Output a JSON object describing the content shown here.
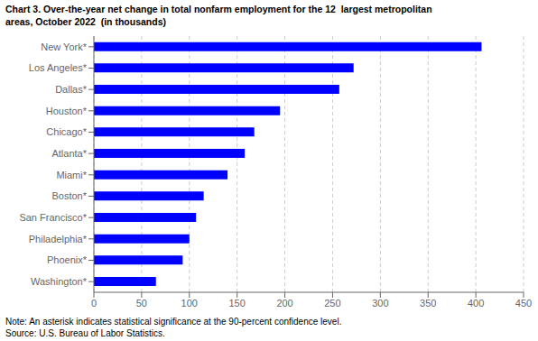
{
  "chart_data": {
    "type": "bar",
    "orientation": "horizontal",
    "title": "Chart 3. Over-the-year net change in total nonfarm employment for the 12  largest metropolitan\nareas, October 2022  (in thousands)",
    "annotations": [
      "Note: An asterisk indicates statistical significance at the 90-percent confidence level.",
      "Source: U.S. Bureau of Labor Statistics."
    ],
    "categories": [
      "Washington*",
      "Phoenix*",
      "Philadelphia*",
      "San Francisco*",
      "Boston*",
      "Miami*",
      "Atlanta*",
      "Chicago*",
      "Houston*",
      "Dallas*",
      "Los Angeles*",
      "New York*"
    ],
    "values": [
      65,
      93,
      100,
      107,
      115,
      140,
      158,
      168,
      195,
      257,
      272,
      406
    ],
    "color": "#0000ff",
    "xlim": [
      0,
      450
    ],
    "xticks": [
      0,
      50,
      100,
      150,
      200,
      250,
      300,
      350,
      400,
      450
    ],
    "grid": true
  }
}
